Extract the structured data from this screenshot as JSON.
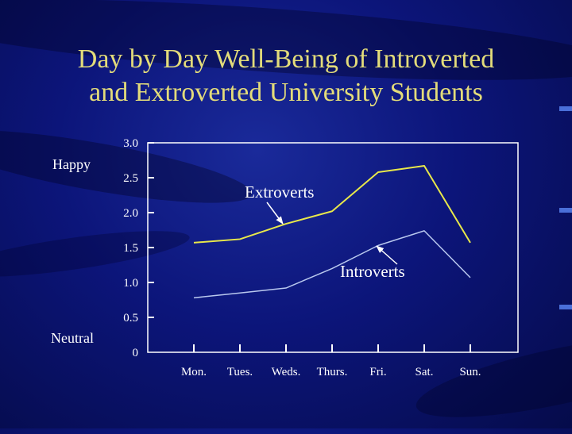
{
  "title_lines": [
    "Day by Day Well-Being of Introverted",
    "and Extroverted University Students"
  ],
  "side_labels": {
    "top": "Happy",
    "bottom": "Neutral"
  },
  "colors": {
    "title": "#e3dc7a",
    "extroverts": "#e8e84a",
    "introverts": "#b9c8ee",
    "axis": "#ffffff"
  },
  "chart_data": {
    "type": "line",
    "categories": [
      "Mon.",
      "Tues.",
      "Weds.",
      "Thurs.",
      "Fri.",
      "Sat.",
      "Sun."
    ],
    "series": [
      {
        "name": "Extroverts",
        "values": [
          1.57,
          1.62,
          1.84,
          2.02,
          2.58,
          2.67,
          1.57
        ]
      },
      {
        "name": "Introverts",
        "values": [
          0.78,
          0.85,
          0.92,
          1.2,
          1.53,
          1.74,
          1.07
        ]
      }
    ],
    "y_ticks": [
      "0",
      "0.5",
      "1.0",
      "1.5",
      "2.0",
      "2.5",
      "3.0"
    ],
    "ylim": [
      0,
      3.0
    ],
    "annotations": [
      {
        "text": "Extroverts",
        "series": "Extroverts"
      },
      {
        "text": "Introverts",
        "series": "Introverts"
      }
    ],
    "grid": false,
    "legend": "none"
  }
}
